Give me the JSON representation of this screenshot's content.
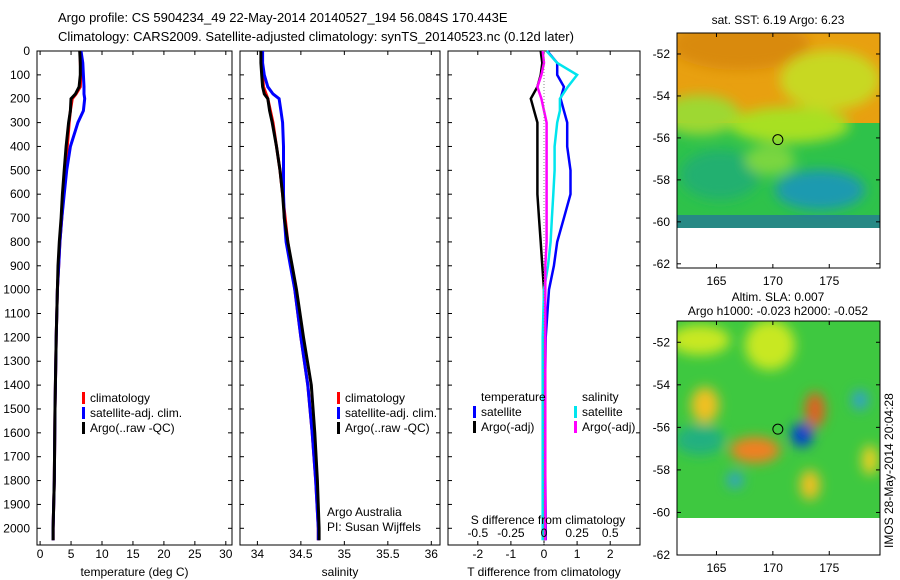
{
  "title": {
    "line1": "Argo profile: CS 5904234_49 22-May-2014 20140527_194 56.084S 170.443E",
    "line2": "Climatology: CARS2009. Satellite-adjusted climatology: synTS_20140523.nc (0.12d later)"
  },
  "credit": "Argo Australia",
  "pi": "PI: Susan Wijffels",
  "stamp": "IMOS 28-May-2014 20:04:28",
  "colors": {
    "clim": "#ff0000",
    "sat": "#0000ff",
    "argo": "#000000",
    "sal_sat": "#00e5ee",
    "sal_argo": "#ff00ff"
  },
  "chart_data": [
    {
      "type": "line",
      "name": "temperature",
      "xlabel": "temperature (deg C)",
      "xlim": [
        -0.5,
        31
      ],
      "xticks": [
        "0",
        "5",
        "10",
        "15",
        "20",
        "25",
        "30"
      ],
      "ylim": [
        0,
        2070
      ],
      "yticks": [
        "0",
        "100",
        "200",
        "300",
        "400",
        "500",
        "600",
        "700",
        "800",
        "900",
        "1000",
        "1100",
        "1200",
        "1300",
        "1400",
        "1500",
        "1600",
        "1700",
        "1800",
        "1900",
        "2000"
      ],
      "legend": [
        "climatology",
        "satellite-adj. clim.",
        "Argo(..raw -QC)"
      ],
      "depth": [
        0,
        50,
        100,
        150,
        180,
        200,
        250,
        300,
        400,
        500,
        600,
        700,
        800,
        900,
        1000,
        1200,
        1500,
        1800,
        2000,
        2050
      ],
      "series": [
        {
          "name": "climatology",
          "values": [
            6.5,
            6.5,
            6.6,
            6.5,
            5.8,
            5.2,
            4.9,
            4.7,
            4.4,
            4.1,
            3.8,
            3.5,
            3.2,
            3.0,
            2.8,
            2.6,
            2.4,
            2.3,
            2.1,
            2.1
          ]
        },
        {
          "name": "satellite-adj. clim.",
          "values": [
            6.6,
            6.9,
            7.0,
            7.1,
            7.1,
            7.2,
            7.0,
            6.1,
            4.9,
            4.3,
            3.9,
            3.5,
            3.2,
            3.0,
            2.8,
            2.6,
            2.4,
            2.3,
            2.1,
            2.1
          ]
        },
        {
          "name": "Argo(..raw -QC)",
          "values": [
            6.4,
            6.5,
            6.5,
            6.3,
            5.7,
            5.0,
            4.9,
            4.6,
            4.2,
            3.9,
            3.6,
            3.4,
            3.1,
            2.9,
            2.8,
            2.6,
            2.4,
            2.3,
            2.1,
            2.1
          ]
        }
      ]
    },
    {
      "type": "line",
      "name": "salinity",
      "xlabel": "salinity",
      "xlim": [
        33.8,
        36.1
      ],
      "xticks": [
        "34",
        "34.5",
        "35",
        "35.5",
        "36"
      ],
      "legend": [
        "climatology",
        "satellite-adj. clim.",
        "Argo(..raw -QC)"
      ],
      "depth": [
        0,
        50,
        100,
        150,
        180,
        200,
        250,
        300,
        400,
        500,
        600,
        700,
        800,
        900,
        1000,
        1200,
        1400,
        1600,
        1800,
        2000,
        2050
      ],
      "series": [
        {
          "name": "climatology",
          "values": [
            34.05,
            34.05,
            34.06,
            34.07,
            34.1,
            34.12,
            34.15,
            34.18,
            34.22,
            34.26,
            34.29,
            34.32,
            34.35,
            34.39,
            34.43,
            34.5,
            34.58,
            34.63,
            34.67,
            34.7,
            34.7
          ]
        },
        {
          "name": "satellite-adj. clim.",
          "values": [
            34.06,
            34.06,
            34.08,
            34.12,
            34.18,
            34.25,
            34.27,
            34.29,
            34.3,
            34.3,
            34.3,
            34.31,
            34.33,
            34.38,
            34.43,
            34.5,
            34.58,
            34.63,
            34.67,
            34.7,
            34.7
          ]
        },
        {
          "name": "Argo(..raw -QC)",
          "values": [
            34.04,
            34.04,
            34.05,
            34.06,
            34.08,
            34.12,
            34.14,
            34.17,
            34.22,
            34.26,
            34.29,
            34.31,
            34.35,
            34.4,
            34.45,
            34.53,
            34.62,
            34.66,
            34.69,
            34.71,
            34.71
          ]
        }
      ]
    },
    {
      "type": "line",
      "name": "difference from climatology",
      "xlabel": "T difference from climatology",
      "xlim": [
        -2.9,
        2.9
      ],
      "xticks": [
        "-2",
        "-1",
        "0",
        "1",
        "2"
      ],
      "x2label": "S difference from climatology",
      "x2lim": [
        -0.725,
        0.725
      ],
      "x2ticks": [
        "-0.5",
        "-0.25",
        "0",
        "0.25",
        "0.5"
      ],
      "legend": {
        "temperature": "temperature",
        "salinity": "salinity",
        "sat": "satellite",
        "argo": "Argo(-adj)"
      },
      "depth": [
        0,
        50,
        100,
        150,
        200,
        250,
        300,
        400,
        500,
        600,
        700,
        800,
        900,
        1000,
        1200,
        1500,
        2000,
        2050
      ],
      "series": [
        {
          "name": "T satellite",
          "values": [
            0.1,
            0.4,
            0.4,
            0.6,
            0.5,
            0.6,
            0.7,
            0.7,
            0.8,
            0.8,
            0.6,
            0.4,
            0.3,
            0.15,
            0.05,
            0.02,
            0.05,
            0.05
          ]
        },
        {
          "name": "T Argo(-adj)",
          "values": [
            -0.1,
            -0.05,
            -0.1,
            -0.2,
            -0.4,
            -0.3,
            -0.2,
            -0.2,
            -0.2,
            -0.2,
            -0.15,
            -0.1,
            -0.05,
            0.0,
            0.0,
            0.0,
            0.0,
            0.0
          ]
        },
        {
          "name": "S satellite",
          "values": [
            0.02,
            0.1,
            0.25,
            0.18,
            0.12,
            0.12,
            0.1,
            0.08,
            0.08,
            0.07,
            0.06,
            0.05,
            0.03,
            0.0,
            -0.01,
            -0.01,
            -0.01,
            -0.01
          ]
        },
        {
          "name": "S Argo(-adj)",
          "values": [
            -0.01,
            0.0,
            -0.02,
            -0.05,
            -0.02,
            0.0,
            0.02,
            0.02,
            0.02,
            0.02,
            0.02,
            0.02,
            0.01,
            0.01,
            0.01,
            0.01,
            0.01,
            0.01
          ]
        }
      ]
    }
  ],
  "maps": [
    {
      "title": "sat. SST: 6.19 Argo: 6.23",
      "xticks": [
        "165",
        "170",
        "175"
      ],
      "yticks": [
        "-52",
        "-54",
        "-56",
        "-58",
        "-60",
        "-62"
      ]
    },
    {
      "title1": "Altim. SLA: 0.007",
      "title2": "Argo h1000: -0.023 h2000: -0.052",
      "xticks": [
        "165",
        "170",
        "175"
      ],
      "yticks": [
        "-52",
        "-54",
        "-56",
        "-58",
        "-60",
        "-62"
      ]
    }
  ],
  "float_position": {
    "lon": 170.443,
    "lat": -56.084
  }
}
